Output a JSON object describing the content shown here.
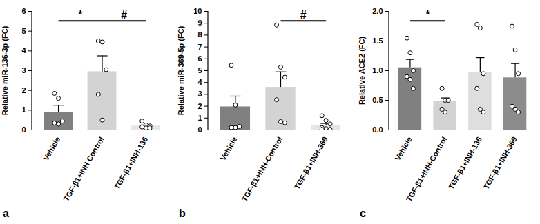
{
  "chart_data": [
    {
      "type": "bar",
      "title": "a",
      "y_label": "Relative miR-136-3p (FC)",
      "categories": [
        "Vehicle",
        "TGF-β1+INH Control",
        "TGF-β1+INH-136"
      ],
      "values": [
        0.9,
        2.95,
        0.2
      ],
      "errors": [
        0.35,
        0.8,
        0.05
      ],
      "points": [
        [
          1.85,
          1.6,
          0.45,
          0.35,
          0.3
        ],
        [
          4.5,
          4.45,
          3.05,
          1.8,
          0.5
        ],
        [
          0.45,
          0.25,
          0.2,
          0.15,
          0.1,
          0.1
        ]
      ],
      "colors": [
        "#808080",
        "#d3d3d3",
        "#e6e6e6"
      ],
      "ylim": [
        0,
        6
      ],
      "yticks": [
        0,
        1,
        2,
        3,
        4,
        5,
        6
      ],
      "annotations": [
        {
          "text": "*",
          "from": "Vehicle",
          "to": "TGF-β1+INH Control"
        },
        {
          "text": "#",
          "from": "TGF-β1+INH Control",
          "to": "TGF-β1+INH-136"
        }
      ]
    },
    {
      "type": "bar",
      "title": "b",
      "y_label": "Relative miR-369-5p (FC)",
      "categories": [
        "Vehicle",
        "TGF-β1+INH-Control",
        "TGF-β1+INH-369"
      ],
      "values": [
        1.95,
        3.6,
        0.35
      ],
      "errors": [
        0.9,
        1.3,
        0.2
      ],
      "points": [
        [
          5.45,
          2.1,
          0.3,
          0.2,
          0.2
        ],
        [
          8.85,
          5.3,
          4.45,
          2.55,
          0.7,
          0.6
        ],
        [
          1.2,
          0.8,
          0.5,
          0.2,
          0.1,
          0.05,
          0.05
        ]
      ],
      "colors": [
        "#808080",
        "#d3d3d3",
        "#e6e6e6"
      ],
      "ylim": [
        0,
        10
      ],
      "yticks": [
        0,
        1,
        2,
        3,
        4,
        5,
        6,
        7,
        8,
        9,
        10
      ],
      "annotations": [
        {
          "text": "#",
          "from": "TGF-β1+INH-Control",
          "to": "TGF-β1+INH-369"
        }
      ]
    },
    {
      "type": "bar",
      "title": "c",
      "y_label": "Relative ACE2 (FC)",
      "categories": [
        "Vehicle",
        "TGF-β1+INH-Control",
        "TGF-β1+INH-136",
        "TGF-β1+INH-369"
      ],
      "values": [
        1.05,
        0.48,
        0.97,
        0.88
      ],
      "errors": [
        0.14,
        0.06,
        0.25,
        0.24
      ],
      "points": [
        [
          1.55,
          1.3,
          1.0,
          0.9,
          0.85,
          0.7
        ],
        [
          0.7,
          0.5,
          0.5,
          0.35,
          0.3
        ],
        [
          1.78,
          1.72,
          0.95,
          0.7,
          0.35,
          0.3
        ],
        [
          1.75,
          1.35,
          0.95,
          0.4,
          0.35,
          0.3
        ]
      ],
      "colors": [
        "#808080",
        "#d3d3d3",
        "#dedede",
        "#8c8c8c"
      ],
      "ylim": [
        0,
        2
      ],
      "yticks": [
        {
          "value": 0,
          "label": "0.0"
        },
        0.5,
        {
          "value": 1,
          "label": "1.0"
        },
        1.5,
        {
          "value": 2,
          "label": "2.0"
        }
      ],
      "annotations": [
        {
          "text": "*",
          "from": "Vehicle",
          "to": "TGF-β1+INH-Control"
        }
      ]
    }
  ]
}
